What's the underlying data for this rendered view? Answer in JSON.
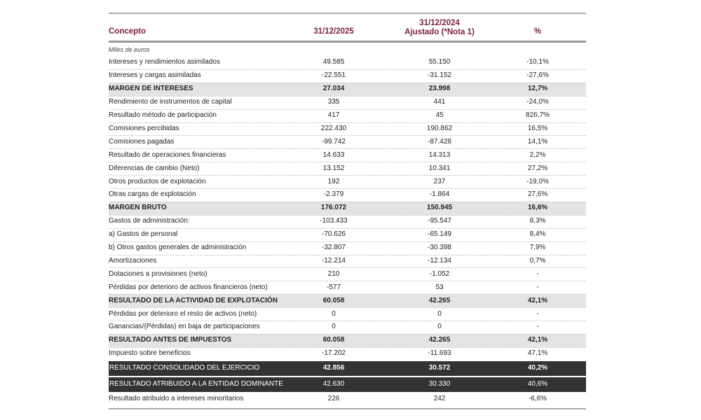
{
  "header": {
    "concept": "Concepto",
    "col1": "31/12/2025",
    "col2": [
      "31/12/2024",
      "Ajustado (*Nota 1)"
    ],
    "pct": "%"
  },
  "units": "Miles de euros",
  "rows": [
    [
      "Intereses y rendimientos asimilados",
      "49.585",
      "55.150",
      "-10,1%"
    ],
    [
      "Intereses y cargas asimiladas",
      "-22.551",
      "-31.152",
      "-27,6%"
    ],
    [
      "MARGEN DE INTERESES",
      "27.034",
      "23.998",
      "12,7%"
    ],
    [
      "Rendimiento de instrumentos de capital",
      "335",
      "441",
      "-24,0%"
    ],
    [
      "Resultado método de participación",
      "417",
      "45",
      "826,7%"
    ],
    [
      "Comisiones percibidas",
      "222.430",
      "190.862",
      "16,5%"
    ],
    [
      "Comisiones pagadas",
      "-99.742",
      "-87.428",
      "14,1%"
    ],
    [
      "Resultado de operaciones financieras",
      "14.633",
      "14.313",
      "2,2%"
    ],
    [
      "Diferencias de cambio (Neto)",
      "13.152",
      "10.341",
      "27,2%"
    ],
    [
      "Otros productos de explotación",
      "192",
      "237",
      "-19,0%"
    ],
    [
      "Otras cargas de explotación",
      "-2.379",
      "-1.864",
      "27,6%"
    ],
    [
      "MARGEN BRUTO",
      "176.072",
      "150.945",
      "16,6%"
    ],
    [
      "Gastos de administración:",
      "-103.433",
      "-95.547",
      "8,3%"
    ],
    [
      "a) Gastos de personal",
      "-70.626",
      "-65.149",
      "8,4%"
    ],
    [
      "b) Otros gastos generales de administración",
      "-32.807",
      "-30.398",
      "7,9%"
    ],
    [
      "Amortizaciones",
      "-12.214",
      "-12.134",
      "0,7%"
    ],
    [
      "Dotaciones a provisiones (neto)",
      "210",
      "-1.052",
      "-"
    ],
    [
      "Pérdidas por deterioro de activos financieros (neto)",
      "-577",
      "53",
      "-"
    ],
    [
      "RESULTADO DE LA ACTIVIDAD DE EXPLOTACIÓN",
      "60.058",
      "42.265",
      "42,1%"
    ],
    [
      "Pérdidas por deterioro el resto de activos (neto)",
      "0",
      "0",
      "-"
    ],
    [
      "Ganancias/(Pérdidas) en baja de participaciones",
      "0",
      "0",
      "-"
    ],
    [
      "RESULTADO ANTES DE IMPUESTOS",
      "60.058",
      "42.265",
      "42,1%"
    ],
    [
      "Impuesto sobre beneficios",
      "-17.202",
      "-11.693",
      "47,1%"
    ],
    [
      "RESULTADO CONSOLIDADO DEL EJERCICIO",
      "42.856",
      "30.572",
      "40,2%"
    ],
    [
      "RESULTADO ATRIBUIDO A LA ENTIDAD DOMINANTE",
      "42.630",
      "30.330",
      "40,6%"
    ],
    [
      "Resultado atribuido a intereses minoritarios",
      "226",
      "242",
      "-6,6%"
    ]
  ]
}
